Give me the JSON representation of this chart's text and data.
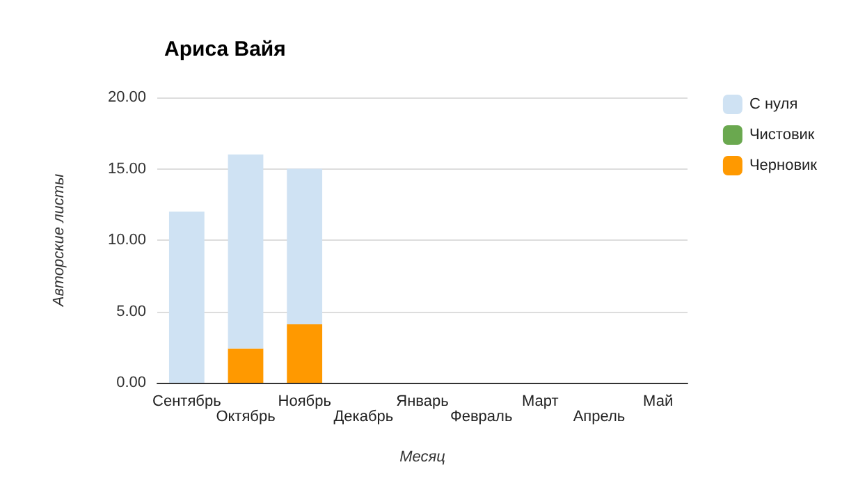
{
  "chart_data": {
    "type": "bar",
    "title": "Ариса Вайя",
    "xlabel": "Месяц",
    "ylabel": "Авторские листы",
    "stacked": true,
    "legend": "right",
    "grid": "y",
    "categories": [
      "Сентябрь",
      "Октябрь",
      "Ноябрь",
      "Декабрь",
      "Январь",
      "Февраль",
      "Март",
      "Апрель",
      "Май"
    ],
    "series": [
      {
        "name": "Черновик",
        "color": "#ff9900",
        "values": [
          0,
          2.4,
          4.1,
          0,
          0,
          0,
          0,
          0,
          0
        ]
      },
      {
        "name": "Чистовик",
        "color": "#6aa84f",
        "values": [
          0,
          0,
          0,
          0,
          0,
          0,
          0,
          0,
          0
        ]
      },
      {
        "name": "С нуля",
        "color": "#cfe2f3",
        "values": [
          12,
          13.6,
          10.9,
          0,
          0,
          0,
          0,
          0,
          0
        ]
      }
    ],
    "ylim": [
      0,
      20
    ],
    "yticks": [
      {
        "value": 0,
        "label": "0.00"
      },
      {
        "value": 5,
        "label": "5.00"
      },
      {
        "value": 10,
        "label": "10.00"
      },
      {
        "value": 15,
        "label": "15.00"
      },
      {
        "value": 20,
        "label": "20.00"
      }
    ]
  }
}
